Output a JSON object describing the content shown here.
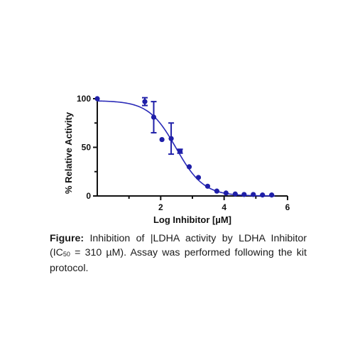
{
  "chart_data": {
    "type": "scatter",
    "xlabel": "Log Inhibitor [µM]",
    "ylabel": "% Relative  Activity",
    "xlim": [
      0,
      6
    ],
    "ylim": [
      0,
      100
    ],
    "xticks": [
      "2",
      "4",
      "6"
    ],
    "yticks": [
      "0",
      "50",
      "100"
    ],
    "marker_color": "#1f1fa8",
    "curve_color": "#2a2ab8",
    "points": [
      {
        "x": 0.0,
        "y": 100
      },
      {
        "x": 1.5,
        "y": 97,
        "err": 4
      },
      {
        "x": 1.78,
        "y": 81,
        "err": 16
      },
      {
        "x": 2.04,
        "y": 58
      },
      {
        "x": 2.33,
        "y": 59,
        "err": 16
      },
      {
        "x": 2.61,
        "y": 46,
        "err": 2
      },
      {
        "x": 2.9,
        "y": 30
      },
      {
        "x": 3.19,
        "y": 19
      },
      {
        "x": 3.48,
        "y": 10
      },
      {
        "x": 3.77,
        "y": 5
      },
      {
        "x": 4.06,
        "y": 3
      },
      {
        "x": 4.35,
        "y": 2
      },
      {
        "x": 4.63,
        "y": 1.5
      },
      {
        "x": 4.92,
        "y": 1.5
      },
      {
        "x": 5.21,
        "y": 1
      },
      {
        "x": 5.5,
        "y": 1
      }
    ],
    "fit": {
      "model": "four-parameter logistic",
      "top": 98,
      "bottom": 0,
      "log_ic50": 2.49,
      "hill_slope": 1.0
    }
  },
  "caption": {
    "label": "Figure:",
    "text_before_sub": " Inhibition of |LDHA activity by LDHA Inhibitor (IC",
    "subscript": "50",
    "text_after_sub": " = 310 µM). Assay was performed following the kit protocol."
  }
}
